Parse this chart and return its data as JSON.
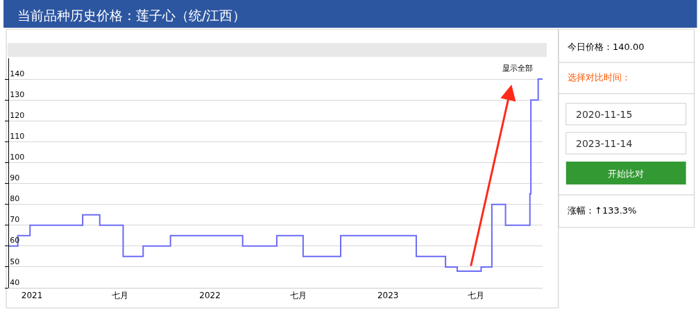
{
  "chart_data": {
    "type": "step",
    "title": "当前品种历史价格：莲子心（统/江西）",
    "x": [
      "2020-11-15",
      "2020-12-03",
      "2020-12-28",
      "2021-04-15",
      "2021-05-20",
      "2021-07-07",
      "2021-08-17",
      "2021-10-12",
      "2022-03-09",
      "2022-05-18",
      "2022-07-11",
      "2022-09-26",
      "2023-02-28",
      "2023-04-29",
      "2023-05-23",
      "2023-07-11",
      "2023-08-02",
      "2023-08-30",
      "2023-10-19",
      "2023-10-21",
      "2023-11-05",
      "2023-11-14"
    ],
    "series": [
      {
        "color": "#6b6bf5",
        "values": [
          60,
          65,
          70,
          75,
          70,
          55,
          60,
          65,
          60,
          65,
          55,
          65,
          55,
          50,
          48,
          50,
          80,
          70,
          85,
          130,
          140,
          140
        ]
      }
    ],
    "xlim": [
      "2020-11-15",
      "2023-11-14"
    ],
    "xticks": [
      {
        "value": "2021-01-01",
        "label": "2021"
      },
      {
        "value": "2021-07-01",
        "label": "七月"
      },
      {
        "value": "2022-01-01",
        "label": "2022"
      },
      {
        "value": "2022-07-01",
        "label": "七月"
      },
      {
        "value": "2023-01-01",
        "label": "2023"
      },
      {
        "value": "2023-07-01",
        "label": "七月"
      }
    ],
    "ylim": [
      40,
      150
    ],
    "yticks": [
      40,
      50,
      60,
      70,
      80,
      90,
      100,
      110,
      120,
      130,
      140
    ],
    "grid": "y",
    "legend": false,
    "annotations": [
      "显示全部",
      "今日价格：140.00",
      "选择对比时间：",
      "2020-11-15",
      "2023-11-14",
      "开始比对",
      "涨幅：↑133.3%"
    ]
  }
}
